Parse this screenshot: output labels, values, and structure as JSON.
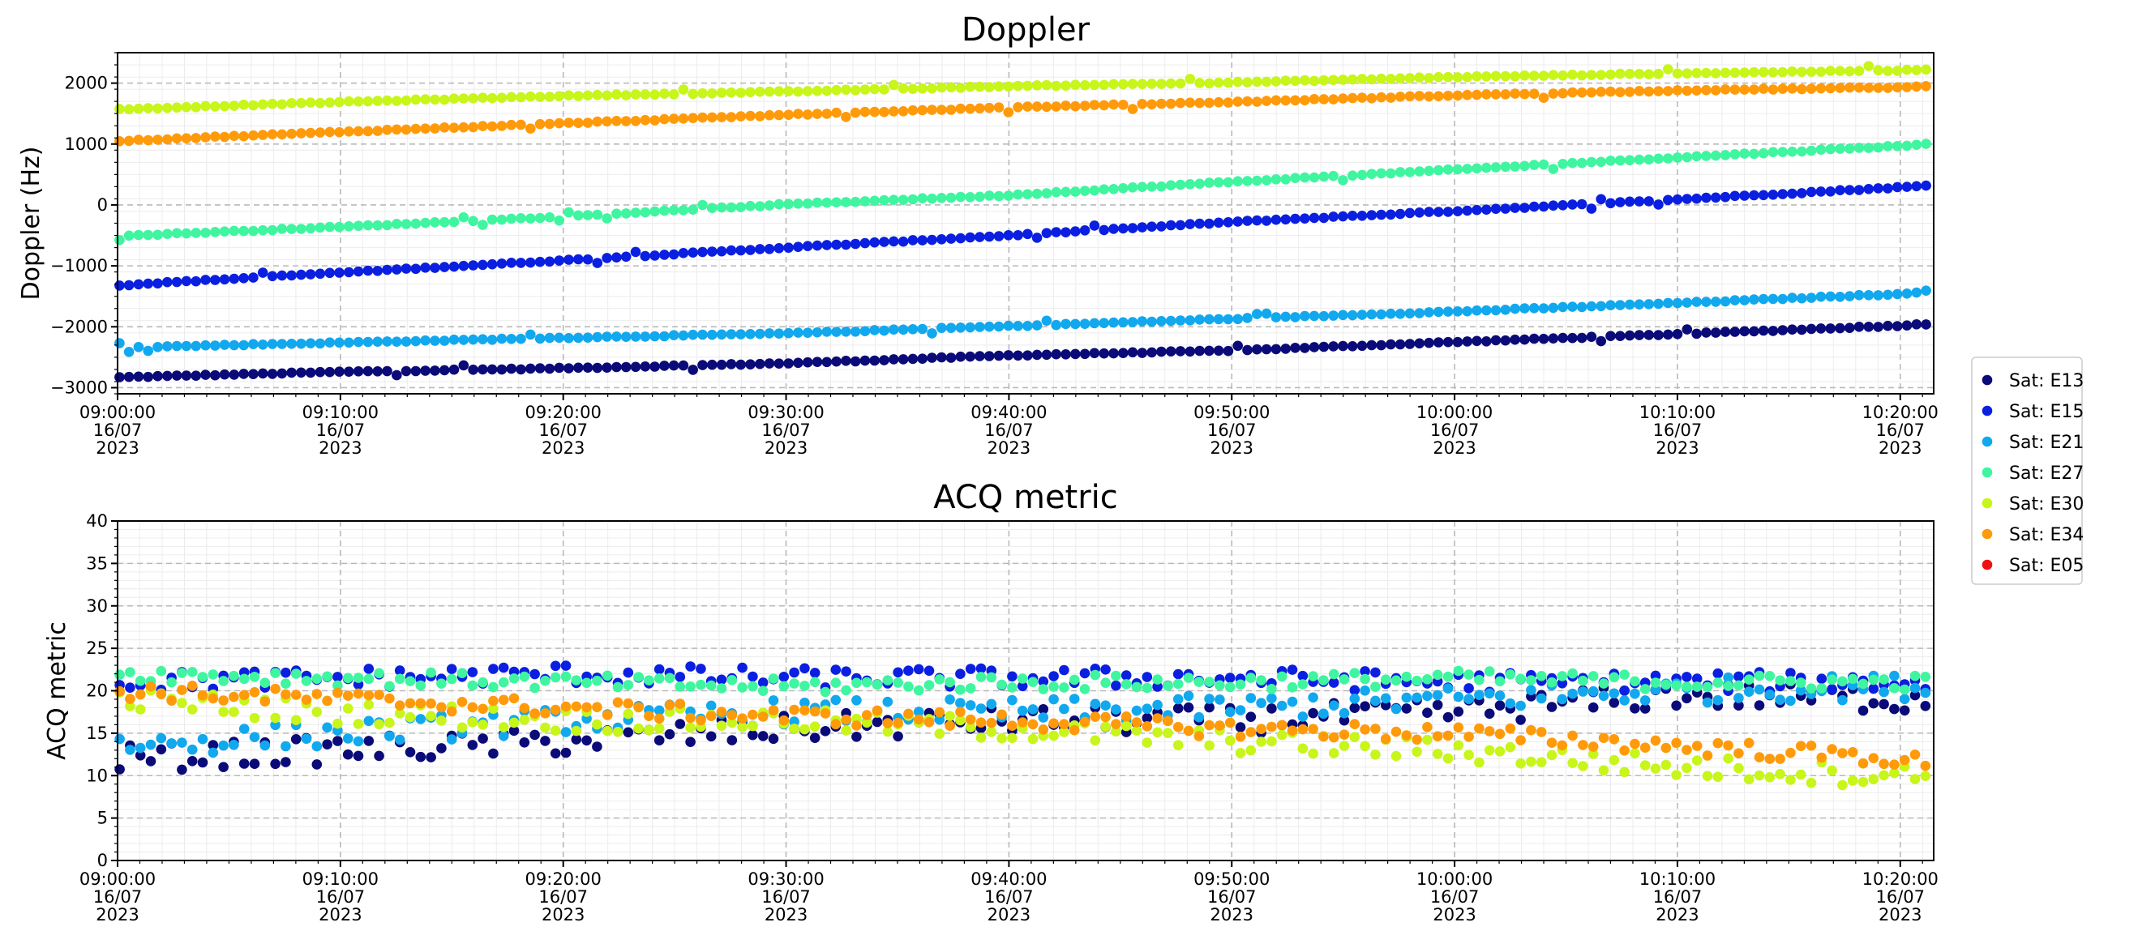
{
  "chart_data": [
    {
      "type": "scatter",
      "title": "Doppler",
      "ylabel": "Doppler (Hz)",
      "xlabel": "",
      "x_unit": "minutes after 09:00:00 16/07/2023",
      "xlim": [
        0,
        81.5
      ],
      "ylim": [
        -3100,
        2500
      ],
      "yticks": [
        -3000,
        -2000,
        -1000,
        0,
        1000,
        2000
      ],
      "ytick_labels": [
        "−3000",
        "−2000",
        "−1000",
        "0",
        "1000",
        "2000"
      ],
      "xticks": [
        0,
        10,
        20,
        30,
        40,
        50,
        60,
        70,
        80
      ],
      "xtick_labels": [
        [
          "09:00:00",
          "16/07",
          "2023"
        ],
        [
          "09:10:00",
          "16/07",
          "2023"
        ],
        [
          "09:20:00",
          "16/07",
          "2023"
        ],
        [
          "09:30:00",
          "16/07",
          "2023"
        ],
        [
          "09:40:00",
          "16/07",
          "2023"
        ],
        [
          "09:50:00",
          "16/07",
          "2023"
        ],
        [
          "10:00:00",
          "16/07",
          "2023"
        ],
        [
          "10:10:00",
          "16/07",
          "2023"
        ],
        [
          "10:20:00",
          "16/07",
          "2023"
        ]
      ],
      "grid": true,
      "series": [
        {
          "name": "Sat: E13",
          "color": "#0a0a78",
          "x": [
            0,
            10,
            20,
            30,
            40,
            50,
            60,
            70,
            80,
            81.5
          ],
          "y": [
            -2830,
            -2740,
            -2680,
            -2600,
            -2470,
            -2390,
            -2250,
            -2120,
            -1980,
            -1950
          ]
        },
        {
          "name": "Sat: E15",
          "color": "#0a1fe0",
          "x": [
            0,
            10,
            20,
            30,
            40,
            50,
            60,
            70,
            80,
            81.5
          ],
          "y": [
            -1320,
            -1110,
            -910,
            -700,
            -500,
            -280,
            -100,
            90,
            290,
            320
          ]
        },
        {
          "name": "Sat: E21",
          "color": "#11a8ee",
          "x": [
            0,
            10,
            20,
            30,
            40,
            50,
            60,
            70,
            80,
            81.5
          ],
          "y": [
            -2340,
            -2260,
            -2180,
            -2110,
            -1990,
            -1870,
            -1750,
            -1610,
            -1460,
            -1400
          ]
        },
        {
          "name": "Sat: E27",
          "color": "#3ff5a0",
          "x": [
            0,
            10,
            20,
            30,
            40,
            50,
            60,
            70,
            80,
            81.5
          ],
          "y": [
            -510,
            -360,
            -190,
            10,
            160,
            380,
            580,
            780,
            970,
            1010
          ]
        },
        {
          "name": "Sat: E30",
          "color": "#c8f51a",
          "x": [
            0,
            10,
            20,
            30,
            40,
            50,
            60,
            70,
            80,
            81.5
          ],
          "y": [
            1570,
            1690,
            1790,
            1860,
            1950,
            2010,
            2100,
            2160,
            2210,
            2230
          ]
        },
        {
          "name": "Sat: E34",
          "color": "#ff9a0a",
          "x": [
            0,
            10,
            20,
            30,
            40,
            50,
            60,
            70,
            80,
            81.5
          ],
          "y": [
            1050,
            1200,
            1340,
            1480,
            1600,
            1690,
            1800,
            1880,
            1930,
            1950
          ]
        },
        {
          "name": "Sat: E05",
          "color": "#ee1111",
          "x": [],
          "y": []
        }
      ]
    },
    {
      "type": "scatter",
      "title": "ACQ metric",
      "ylabel": "ACQ metric",
      "xlabel": "",
      "x_unit": "minutes after 09:00:00 16/07/2023",
      "xlim": [
        0,
        81.5
      ],
      "ylim": [
        0,
        40
      ],
      "yticks": [
        0,
        5,
        10,
        15,
        20,
        25,
        30,
        35,
        40
      ],
      "ytick_labels": [
        "0",
        "5",
        "10",
        "15",
        "20",
        "25",
        "30",
        "35",
        "40"
      ],
      "xticks": [
        0,
        10,
        20,
        30,
        40,
        50,
        60,
        70,
        80
      ],
      "xtick_labels": [
        [
          "09:00:00",
          "16/07",
          "2023"
        ],
        [
          "09:10:00",
          "16/07",
          "2023"
        ],
        [
          "09:20:00",
          "16/07",
          "2023"
        ],
        [
          "09:30:00",
          "16/07",
          "2023"
        ],
        [
          "09:40:00",
          "16/07",
          "2023"
        ],
        [
          "09:50:00",
          "16/07",
          "2023"
        ],
        [
          "10:00:00",
          "16/07",
          "2023"
        ],
        [
          "10:10:00",
          "16/07",
          "2023"
        ],
        [
          "10:20:00",
          "16/07",
          "2023"
        ]
      ],
      "grid": true,
      "series": [
        {
          "name": "Sat: E13",
          "color": "#0a0a78",
          "x": [
            0,
            10,
            20,
            30,
            40,
            50,
            60,
            70,
            80,
            81.5
          ],
          "y": [
            12,
            13,
            14,
            15.5,
            16.5,
            16.5,
            17.5,
            19.5,
            19,
            19
          ],
          "spread": 1.6
        },
        {
          "name": "Sat: E15",
          "color": "#0a1fe0",
          "x": [
            0,
            10,
            20,
            30,
            40,
            50,
            60,
            70,
            80,
            81.5
          ],
          "y": [
            21,
            21.5,
            22,
            21.5,
            21.5,
            21.5,
            21,
            21,
            21,
            21
          ],
          "spread": 1.2
        },
        {
          "name": "Sat: E21",
          "color": "#11a8ee",
          "x": [
            0,
            10,
            20,
            30,
            40,
            50,
            60,
            70,
            80,
            81.5
          ],
          "y": [
            13.5,
            15,
            16.5,
            17.5,
            17.5,
            18,
            19,
            20,
            20.5,
            20.5
          ],
          "spread": 1.5
        },
        {
          "name": "Sat: E27",
          "color": "#3ff5a0",
          "x": [
            0,
            10,
            20,
            30,
            40,
            50,
            60,
            70,
            80,
            81.5
          ],
          "y": [
            22,
            21.5,
            21,
            20.5,
            21,
            21,
            21.5,
            21,
            21,
            21
          ],
          "spread": 0.9
        },
        {
          "name": "Sat: E30",
          "color": "#c8f51a",
          "x": [
            0,
            10,
            20,
            30,
            40,
            50,
            60,
            70,
            80,
            81.5
          ],
          "y": [
            19,
            17.5,
            16.5,
            16.5,
            15.5,
            14,
            13,
            11,
            10,
            10
          ],
          "spread": 1.4
        },
        {
          "name": "Sat: E34",
          "color": "#ff9a0a",
          "x": [
            0,
            10,
            20,
            30,
            40,
            50,
            60,
            70,
            80,
            81.5
          ],
          "y": [
            20,
            19,
            18,
            17,
            16.5,
            15.5,
            15,
            13.5,
            12,
            11
          ],
          "spread": 1.0
        },
        {
          "name": "Sat: E05",
          "color": "#ee1111",
          "x": [],
          "y": [],
          "spread": 0
        }
      ]
    }
  ],
  "legend": {
    "placement": "right",
    "entries": [
      {
        "label": "Sat: E13",
        "color": "#0a0a78"
      },
      {
        "label": "Sat: E15",
        "color": "#0a1fe0"
      },
      {
        "label": "Sat: E21",
        "color": "#11a8ee"
      },
      {
        "label": "Sat: E27",
        "color": "#3ff5a0"
      },
      {
        "label": "Sat: E30",
        "color": "#c8f51a"
      },
      {
        "label": "Sat: E34",
        "color": "#ff9a0a"
      },
      {
        "label": "Sat: E05",
        "color": "#ee1111"
      }
    ]
  }
}
